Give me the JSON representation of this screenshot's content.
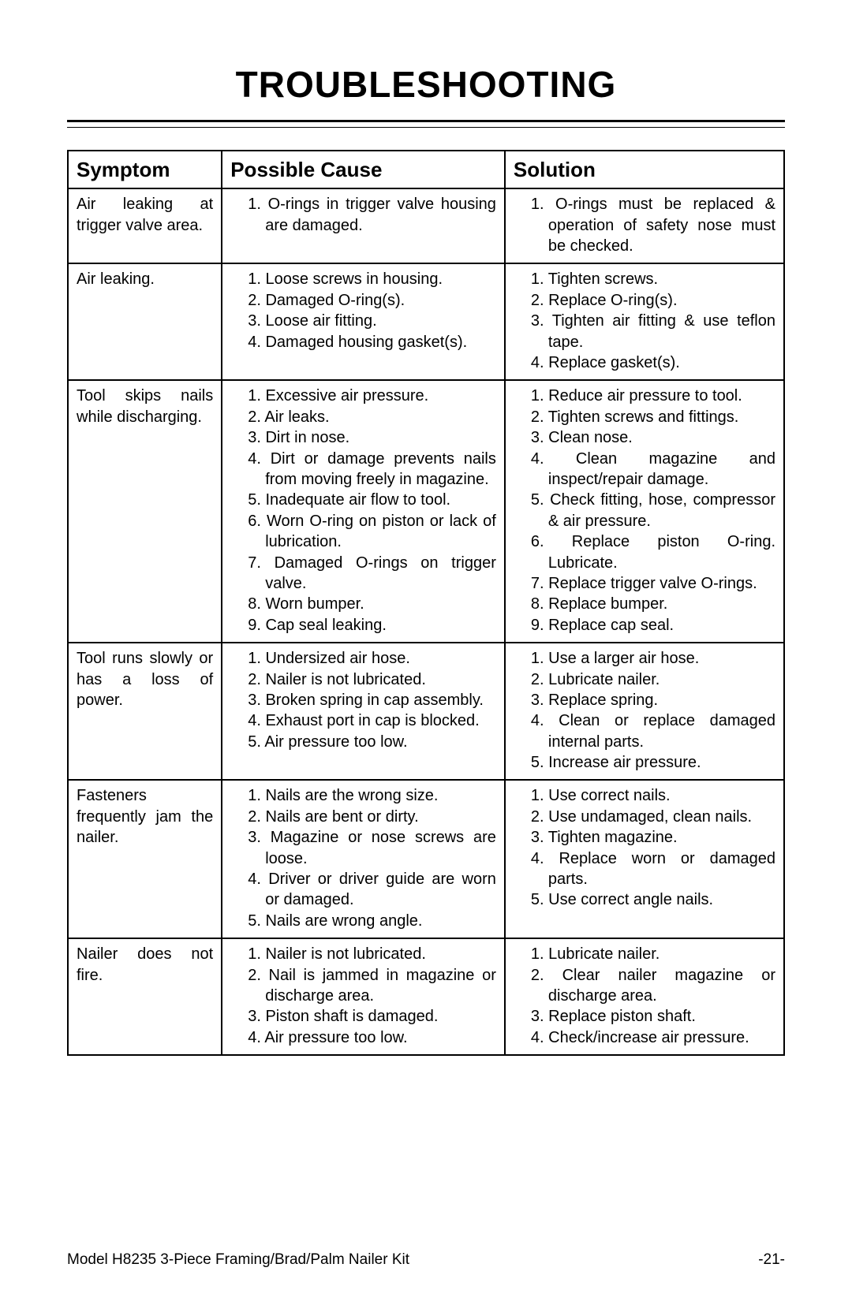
{
  "title": "TROUBLESHOOTING",
  "columns": [
    "Symptom",
    "Possible Cause",
    "Solution"
  ],
  "rows": [
    {
      "symptom": "Air leaking at trigger valve area.",
      "causes": [
        "O-rings in trigger valve housing are damaged."
      ],
      "solutions": [
        "O-rings must be replaced & operation of safety nose must be checked."
      ]
    },
    {
      "symptom": "Air leaking.",
      "causes": [
        "Loose screws in housing.",
        "Damaged O-ring(s).",
        "Loose air fitting.",
        "Damaged housing gasket(s)."
      ],
      "solutions": [
        "Tighten screws.",
        "Replace O-ring(s).",
        "Tighten air fitting & use teflon tape.",
        "Replace gasket(s)."
      ]
    },
    {
      "symptom": "Tool skips nails while discharging.",
      "causes": [
        "Excessive air pressure.",
        "Air leaks.",
        "Dirt in nose.",
        "Dirt or damage prevents nails from moving freely in magazine.",
        "Inadequate air flow to tool.",
        "Worn O-ring on piston or lack of lubrication.",
        "Damaged O-rings on trigger valve.",
        "Worn bumper.",
        "Cap seal leaking."
      ],
      "solutions": [
        "Reduce air pressure to tool.",
        "Tighten screws and fittings.",
        "Clean nose.",
        "Clean magazine and inspect/repair damage.",
        "Check fitting, hose, compressor & air pressure.",
        "Replace piston O-ring. Lubricate.",
        "Replace trigger valve O-rings.",
        "Replace bumper.",
        "Replace cap seal."
      ]
    },
    {
      "symptom": "Tool runs slowly or has a loss of power.",
      "causes": [
        "Undersized air hose.",
        "Nailer is not lubricated.",
        "Broken spring in cap assembly.",
        "Exhaust port in cap is blocked.",
        "Air pressure too low."
      ],
      "solutions": [
        "Use a larger air hose.",
        "Lubricate nailer.",
        "Replace spring.",
        "Clean or replace damaged internal parts.",
        "Increase air pressure."
      ]
    },
    {
      "symptom": "Fasteners frequently jam the nailer.",
      "causes": [
        "Nails are the wrong size.",
        "Nails are bent or dirty.",
        "Magazine or nose screws are loose.",
        "Driver or driver guide are worn or damaged.",
        "Nails are wrong angle."
      ],
      "solutions": [
        "Use correct nails.",
        "Use undamaged, clean nails.",
        "Tighten magazine.",
        "Replace worn or damaged parts.",
        "Use correct angle nails."
      ]
    },
    {
      "symptom": "Nailer does not fire.",
      "causes": [
        "Nailer is not lubricated.",
        "Nail is jammed in magazine or discharge area.",
        "Piston shaft is damaged.",
        "Air pressure too low."
      ],
      "solutions": [
        "Lubricate nailer.",
        "Clear nailer magazine or discharge area.",
        "Replace piston shaft.",
        "Check/increase air pressure."
      ]
    }
  ],
  "footer_left": "Model H8235  3-Piece Framing/Brad/Palm Nailer Kit",
  "footer_right": "-21-"
}
